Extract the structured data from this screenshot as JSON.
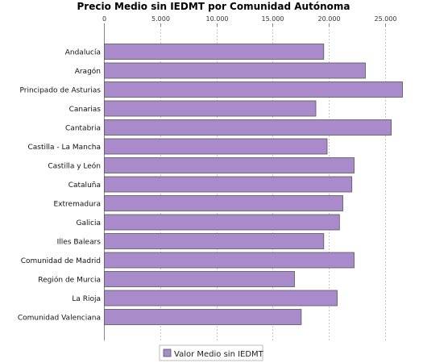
{
  "chart_data": {
    "type": "bar",
    "orientation": "horizontal",
    "title": "Precio Medio sin IEDMT por Comunidad Autónoma",
    "categories": [
      "Andalucía",
      "Aragón",
      "Principado de Asturias",
      "Canarias",
      "Cantabria",
      "Castilla - La Mancha",
      "Castilla y León",
      "Cataluña",
      "Extremadura",
      "Galicia",
      "Illes Balears",
      "Comunidad de Madrid",
      "Región de Murcia",
      "La Rioja",
      "Comunidad Valenciana"
    ],
    "series": [
      {
        "name": "Valor Medio sin IEDMT",
        "values": [
          19500,
          23200,
          26500,
          18800,
          25500,
          19800,
          22200,
          22000,
          21200,
          20900,
          19500,
          22200,
          16900,
          20700,
          17500
        ]
      }
    ],
    "xlim": [
      0,
      27500
    ],
    "x_ticks": [
      0,
      5000,
      10000,
      15000,
      20000,
      25000
    ],
    "x_tick_labels": [
      "0",
      "5.000",
      "10.000",
      "15.000",
      "20.000",
      "25.000"
    ],
    "x_axis_position": "top",
    "grid": true,
    "legend_position": "bottom",
    "colors": {
      "bar_fill": "#a98bcb",
      "bar_stroke": "#555555",
      "grid": "#c8c8c8",
      "axis": "#888888"
    }
  }
}
